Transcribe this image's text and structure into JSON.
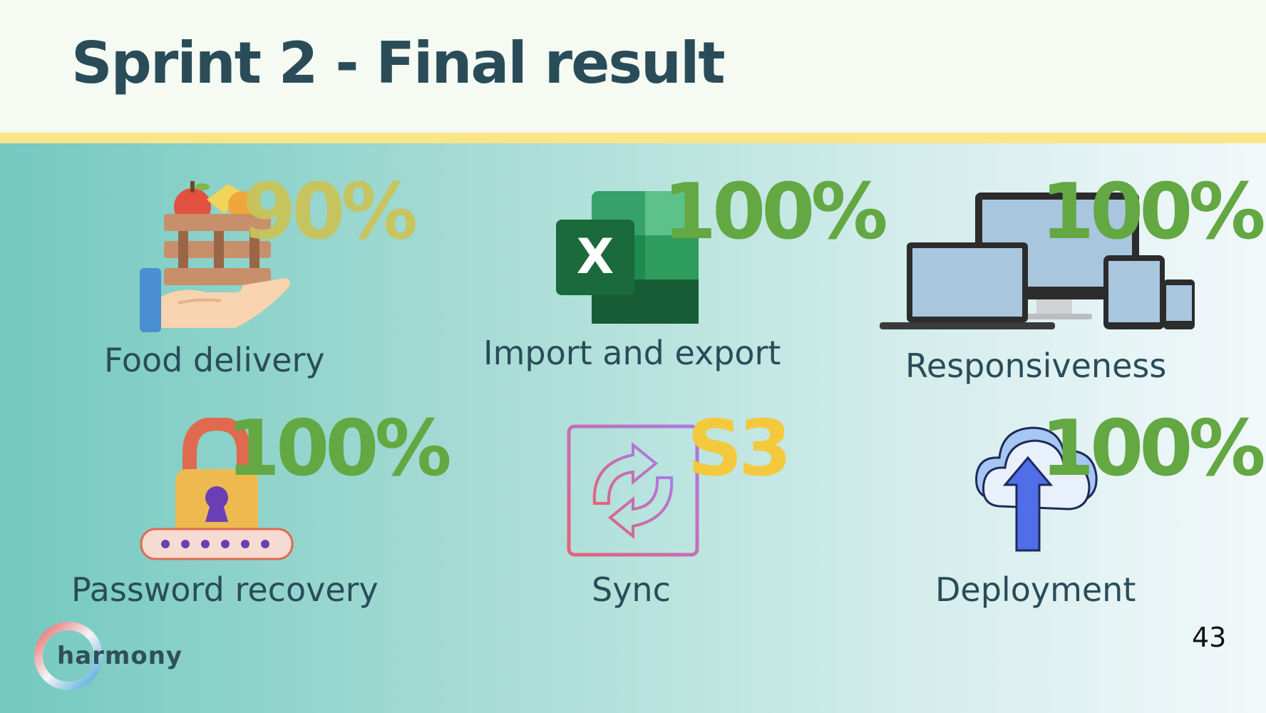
{
  "slide": {
    "title": "Sprint 2 - Final result",
    "page_number": "43",
    "logo_text": "harmony"
  },
  "colors": {
    "title": "#2a4c59",
    "accent_rule": "#fbe58a",
    "pct_green": "#63a842",
    "pct_olive": "#c9c45a",
    "pct_yellow": "#f4c93e"
  },
  "features": [
    {
      "label": "Food delivery",
      "value": "90%",
      "icon": "food-crate-hand-icon"
    },
    {
      "label": "Import and export",
      "value": "100%",
      "icon": "excel-icon"
    },
    {
      "label": "Responsiveness",
      "value": "100%",
      "icon": "multi-device-icon"
    },
    {
      "label": "Password recovery",
      "value": "100%",
      "icon": "padlock-password-icon"
    },
    {
      "label": "Sync",
      "value": "S3",
      "icon": "sync-arrows-icon"
    },
    {
      "label": "Deployment",
      "value": "100%",
      "icon": "cloud-upload-icon"
    }
  ]
}
